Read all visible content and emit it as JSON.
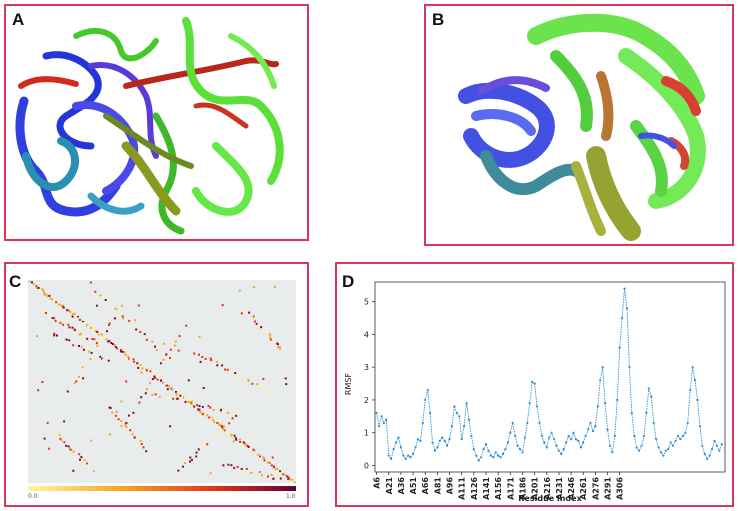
{
  "panels": {
    "a": {
      "label": "A"
    },
    "b": {
      "label": "B"
    },
    "c": {
      "label": "C",
      "colorbar_min": "0.0",
      "colorbar_max": "1.0"
    },
    "d": {
      "label": "D"
    }
  },
  "colors": {
    "panel_border": "#d6385c",
    "protein_blue": "#2f3fe0",
    "protein_green": "#5be03a",
    "protein_red": "#d42a1c",
    "protein_olive": "#8a9a1e",
    "protein_teal": "#2a8fb0",
    "rmsf_line": "#2f8fd0"
  },
  "chart_data": [
    {
      "type": "heatmap",
      "title": "",
      "xlabel": "",
      "ylabel": "",
      "color_scale": [
        "#fff6a0",
        "#f5a623",
        "#e0331d",
        "#7a0a3a"
      ],
      "colorbar_range": [
        0.0,
        1.0
      ],
      "description_values": "residue contact correlation map, strong diagonal and off-diagonal bands"
    },
    {
      "type": "line",
      "title": "",
      "xlabel": "Residue index",
      "ylabel": "RMSF",
      "ylim": [
        -0.2,
        5.6
      ],
      "yticks": [
        0,
        1,
        2,
        3,
        4,
        5
      ],
      "xtick_labels": [
        "A6",
        "A21",
        "A36",
        "A51",
        "A66",
        "A81",
        "A96",
        "A111",
        "A126",
        "A141",
        "A156",
        "A171",
        "A186",
        "A201",
        "A216",
        "A231",
        "A246",
        "A261",
        "A276",
        "A291",
        "A306"
      ],
      "x_start": 6,
      "x_step": 3,
      "values": [
        1.6,
        1.2,
        1.5,
        1.3,
        1.4,
        0.3,
        0.2,
        0.5,
        0.7,
        0.85,
        0.55,
        0.3,
        0.2,
        0.3,
        0.25,
        0.35,
        0.55,
        0.8,
        0.75,
        1.3,
        2.0,
        2.3,
        1.6,
        0.7,
        0.45,
        0.55,
        0.75,
        0.85,
        0.75,
        0.6,
        0.8,
        1.2,
        1.8,
        1.6,
        1.5,
        0.8,
        1.2,
        1.9,
        1.4,
        0.9,
        0.5,
        0.3,
        0.15,
        0.25,
        0.5,
        0.65,
        0.45,
        0.3,
        0.25,
        0.4,
        0.3,
        0.25,
        0.35,
        0.5,
        0.7,
        1.0,
        1.3,
        0.9,
        0.6,
        0.5,
        0.4,
        0.85,
        1.3,
        1.9,
        2.55,
        2.5,
        1.8,
        1.3,
        0.9,
        0.7,
        0.55,
        0.85,
        1.0,
        0.8,
        0.6,
        0.45,
        0.35,
        0.5,
        0.7,
        0.9,
        0.8,
        1.0,
        0.8,
        0.75,
        0.55,
        0.7,
        0.9,
        1.1,
        1.3,
        1.05,
        1.2,
        1.8,
        2.6,
        3.0,
        1.9,
        1.1,
        0.6,
        0.4,
        0.9,
        2.0,
        3.6,
        4.5,
        5.4,
        4.8,
        3.0,
        1.6,
        0.9,
        0.55,
        0.45,
        0.6,
        0.9,
        1.6,
        2.35,
        2.1,
        1.3,
        0.8,
        0.55,
        0.4,
        0.3,
        0.45,
        0.5,
        0.7,
        0.6,
        0.75,
        0.9,
        0.8,
        0.9,
        1.0,
        1.3,
        2.3,
        3.0,
        2.6,
        2.0,
        1.2,
        0.6,
        0.35,
        0.2,
        0.3,
        0.5,
        0.75,
        0.6,
        0.45,
        0.65
      ]
    }
  ]
}
